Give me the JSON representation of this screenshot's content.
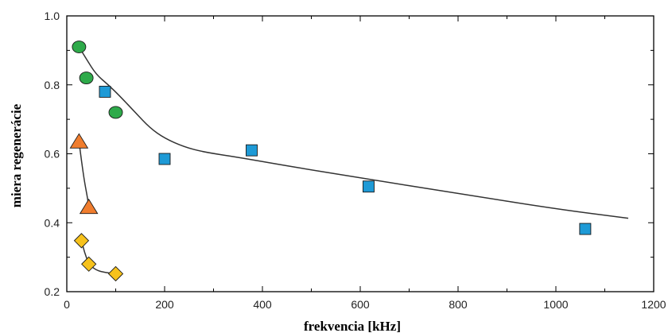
{
  "chart_data": {
    "type": "scatter",
    "title": "",
    "xlabel": "frekvencia [kHz]",
    "ylabel": "miera regenerácie",
    "xlim": [
      0,
      1200
    ],
    "ylim": [
      0.2,
      1.0
    ],
    "x_ticks": [
      0,
      200,
      400,
      600,
      800,
      1000,
      1200
    ],
    "y_ticks": [
      0.2,
      0.4,
      0.6,
      0.8,
      1.0
    ],
    "x_tick_labels": [
      "0",
      "200",
      "400",
      "600",
      "800",
      "1000",
      "1200"
    ],
    "y_tick_labels": [
      "0.2",
      "0.4",
      "0.6",
      "0.8",
      "1.0"
    ],
    "grid": false,
    "legend": "none",
    "series": [
      {
        "marker": "circle",
        "color": "#2eaa4a",
        "points": [
          [
            25,
            0.91
          ],
          [
            40,
            0.82
          ],
          [
            100,
            0.72
          ]
        ]
      },
      {
        "marker": "square",
        "color": "#1e9ad6",
        "points": [
          [
            78,
            0.78
          ],
          [
            200,
            0.585
          ],
          [
            378,
            0.61
          ],
          [
            617,
            0.505
          ],
          [
            1060,
            0.382
          ]
        ]
      },
      {
        "marker": "triangle",
        "color": "#f07d2e",
        "points": [
          [
            25,
            0.635
          ],
          [
            45,
            0.445
          ]
        ]
      },
      {
        "marker": "diamond",
        "color": "#f7c21c",
        "points": [
          [
            30,
            0.348
          ],
          [
            45,
            0.28
          ],
          [
            100,
            0.252
          ]
        ]
      }
    ],
    "curves": [
      {
        "color": "#333333",
        "points": [
          [
            25,
            0.91
          ],
          [
            40,
            0.875
          ],
          [
            60,
            0.83
          ],
          [
            85,
            0.8
          ],
          [
            110,
            0.765
          ],
          [
            140,
            0.72
          ],
          [
            170,
            0.675
          ],
          [
            200,
            0.645
          ],
          [
            240,
            0.62
          ],
          [
            280,
            0.605
          ],
          [
            350,
            0.59
          ],
          [
            450,
            0.565
          ],
          [
            600,
            0.53
          ],
          [
            800,
            0.485
          ],
          [
            1000,
            0.44
          ],
          [
            1148,
            0.413
          ]
        ]
      },
      {
        "color": "#333333",
        "points": [
          [
            25,
            0.635
          ],
          [
            30,
            0.58
          ],
          [
            36,
            0.52
          ],
          [
            42,
            0.475
          ],
          [
            45,
            0.445
          ]
        ]
      },
      {
        "color": "#333333",
        "points": [
          [
            30,
            0.348
          ],
          [
            36,
            0.315
          ],
          [
            45,
            0.28
          ],
          [
            60,
            0.262
          ],
          [
            80,
            0.255
          ],
          [
            100,
            0.252
          ]
        ]
      }
    ]
  }
}
